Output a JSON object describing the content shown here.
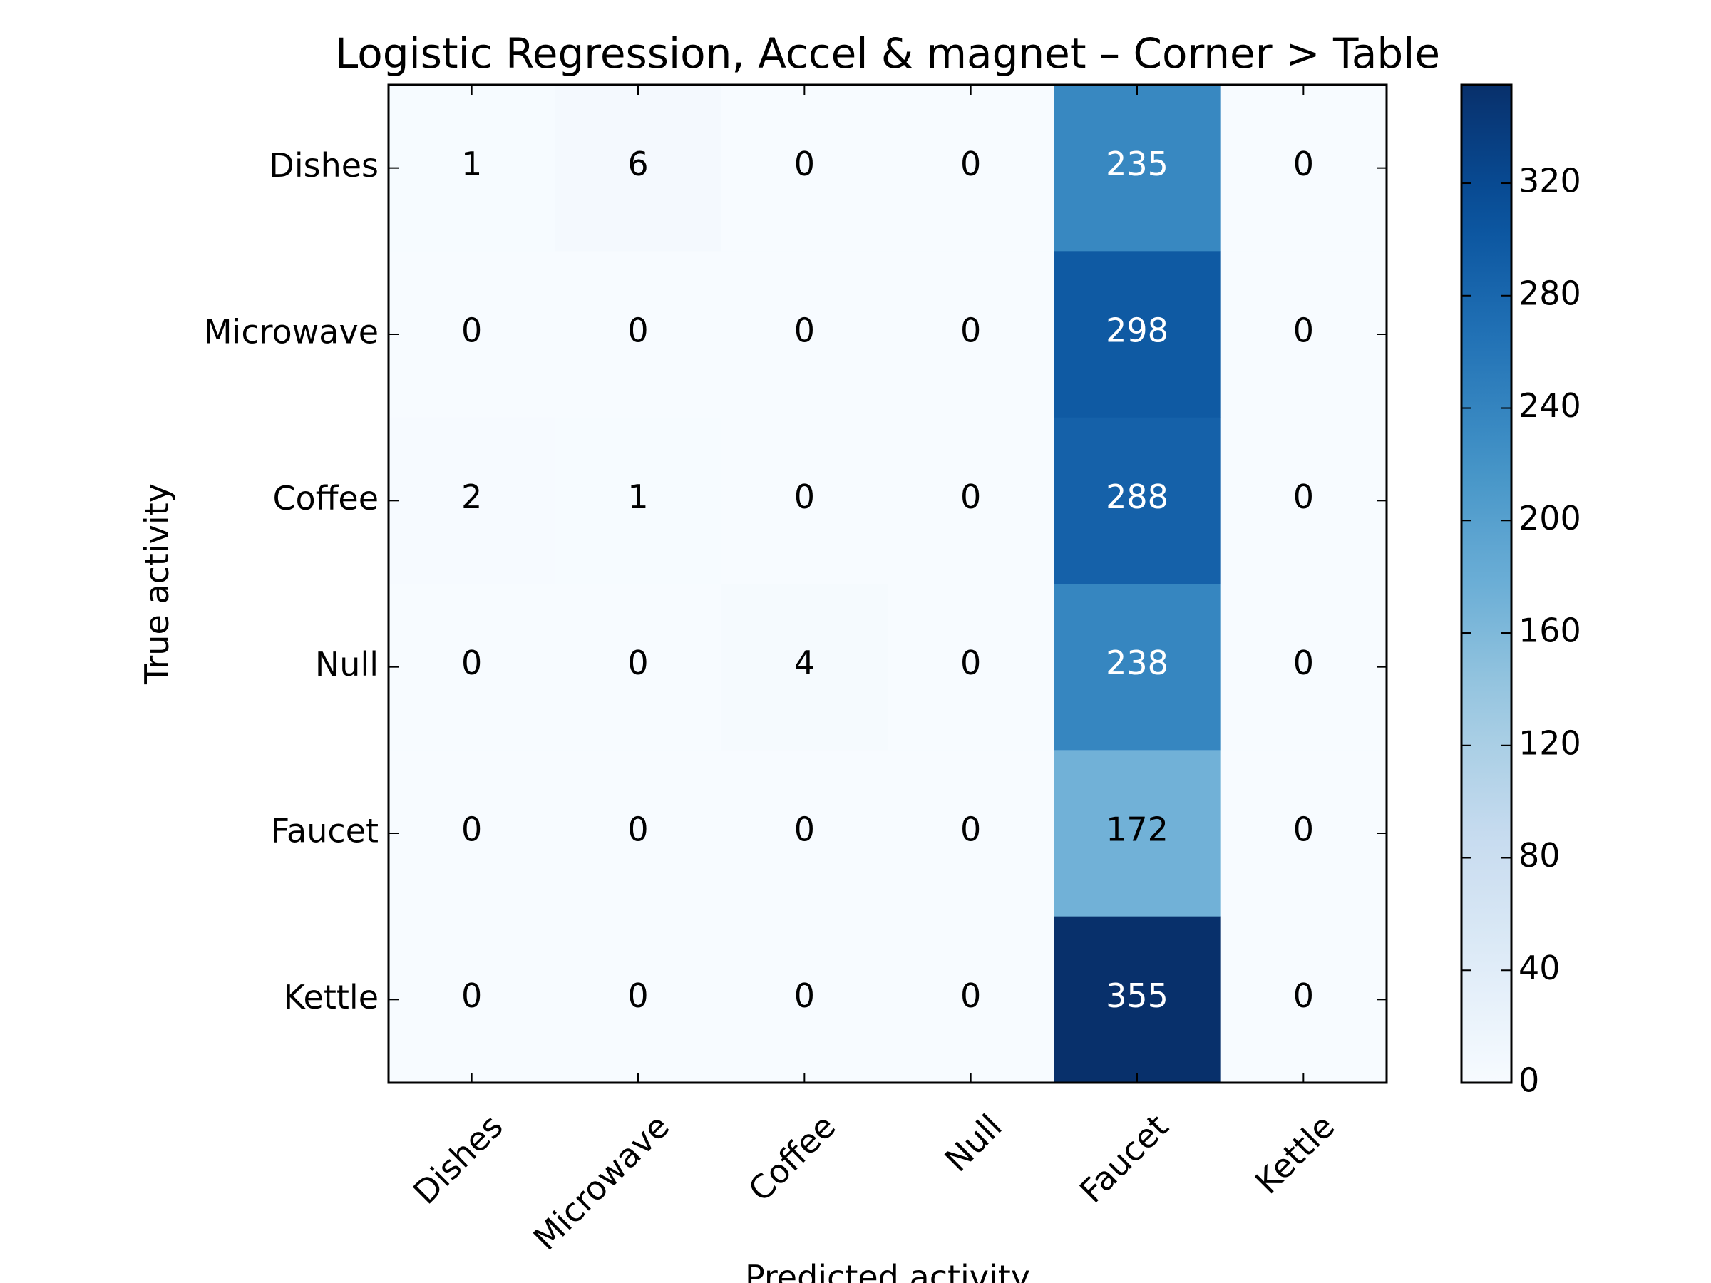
{
  "chart_data": {
    "type": "heatmap",
    "title": "Logistic Regression, Accel & magnet – Corner > Table",
    "xlabel": "Predicted activity",
    "ylabel": "True activity",
    "x_categories": [
      "Dishes",
      "Microwave",
      "Coffee",
      "Null",
      "Faucet",
      "Kettle"
    ],
    "y_categories": [
      "Dishes",
      "Microwave",
      "Coffee",
      "Null",
      "Faucet",
      "Kettle"
    ],
    "values": [
      [
        1,
        6,
        0,
        0,
        235,
        0
      ],
      [
        0,
        0,
        0,
        0,
        298,
        0
      ],
      [
        2,
        1,
        0,
        0,
        288,
        0
      ],
      [
        0,
        0,
        4,
        0,
        238,
        0
      ],
      [
        0,
        0,
        0,
        0,
        172,
        0
      ],
      [
        0,
        0,
        0,
        0,
        355,
        0
      ]
    ],
    "colorscale": "Blues",
    "color_range": [
      0,
      355
    ],
    "colorbar_ticks": [
      0,
      40,
      80,
      120,
      160,
      200,
      240,
      280,
      320
    ]
  }
}
